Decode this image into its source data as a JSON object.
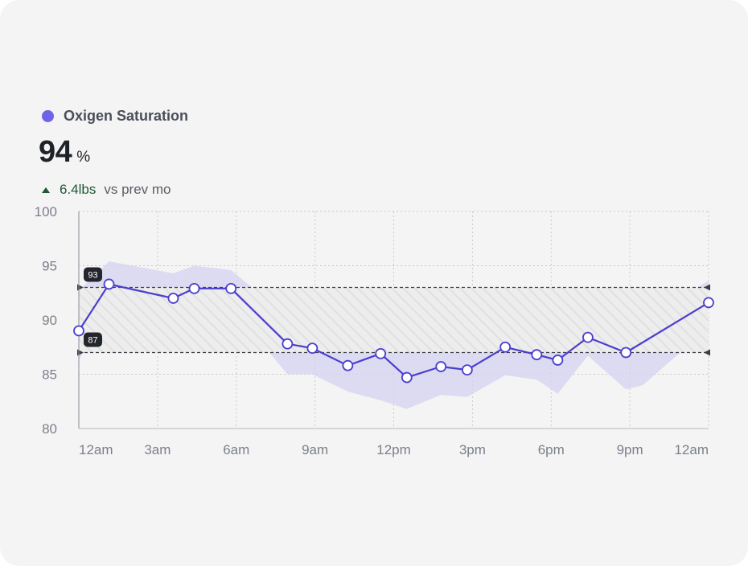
{
  "metric": {
    "title": "Oxigen Saturation",
    "value": "94",
    "unit": "%",
    "delta_value": "6.4lbs",
    "delta_label": "vs prev mo"
  },
  "colors": {
    "series": "#4b3fcf",
    "marker": "#6e65e6",
    "band": "#d6d3f0",
    "delta_up": "#1f5a34"
  },
  "chart_data": {
    "type": "line",
    "title": "",
    "xlabel": "",
    "ylabel": "",
    "ylim": [
      80,
      100
    ],
    "yticks": [
      "100",
      "95",
      "90",
      "85",
      "80"
    ],
    "xticks": [
      "12am",
      "3am",
      "6am",
      "9am",
      "12pm",
      "3pm",
      "6pm",
      "9pm",
      "12am"
    ],
    "x_range_hours": [
      0,
      24
    ],
    "grid": true,
    "series": [
      {
        "values": [
          {
            "x": 0.0,
            "y": 89.0
          },
          {
            "x": 1.15,
            "y": 93.3
          },
          {
            "x": 3.6,
            "y": 92.0
          },
          {
            "x": 4.4,
            "y": 92.9
          },
          {
            "x": 5.8,
            "y": 92.9
          },
          {
            "x": 7.95,
            "y": 87.8
          },
          {
            "x": 8.9,
            "y": 87.4
          },
          {
            "x": 10.25,
            "y": 85.8
          },
          {
            "x": 11.5,
            "y": 86.9
          },
          {
            "x": 12.5,
            "y": 84.7
          },
          {
            "x": 13.8,
            "y": 85.7
          },
          {
            "x": 14.8,
            "y": 85.4
          },
          {
            "x": 16.25,
            "y": 87.5
          },
          {
            "x": 17.45,
            "y": 86.8
          },
          {
            "x": 18.25,
            "y": 86.3
          },
          {
            "x": 19.4,
            "y": 88.4
          },
          {
            "x": 20.85,
            "y": 87.0
          },
          {
            "x": 24.0,
            "y": 91.6
          }
        ]
      }
    ],
    "range_band": {
      "upper": [
        {
          "x": 0.0,
          "y": 92.7
        },
        {
          "x": 1.15,
          "y": 95.4
        },
        {
          "x": 3.6,
          "y": 94.3
        },
        {
          "x": 4.4,
          "y": 95.0
        },
        {
          "x": 5.8,
          "y": 94.6
        },
        {
          "x": 7.95,
          "y": 90.3
        },
        {
          "x": 8.9,
          "y": 90.0
        },
        {
          "x": 10.25,
          "y": 88.6
        },
        {
          "x": 11.5,
          "y": 89.1
        },
        {
          "x": 12.5,
          "y": 87.5
        },
        {
          "x": 13.8,
          "y": 88.6
        },
        {
          "x": 14.8,
          "y": 88.3
        },
        {
          "x": 16.25,
          "y": 90.4
        },
        {
          "x": 17.45,
          "y": 90.3
        },
        {
          "x": 18.25,
          "y": 89.8
        },
        {
          "x": 19.4,
          "y": 90.8
        },
        {
          "x": 20.85,
          "y": 90.9
        },
        {
          "x": 21.5,
          "y": 92.3
        },
        {
          "x": 23.2,
          "y": 92.5
        },
        {
          "x": 24.0,
          "y": 93.6
        }
      ],
      "lower": [
        {
          "x": 0.0,
          "y": 86.3
        },
        {
          "x": 1.15,
          "y": 91.2
        },
        {
          "x": 3.6,
          "y": 89.9
        },
        {
          "x": 4.4,
          "y": 91.2
        },
        {
          "x": 5.8,
          "y": 91.2
        },
        {
          "x": 7.95,
          "y": 85.0
        },
        {
          "x": 8.9,
          "y": 85.0
        },
        {
          "x": 10.25,
          "y": 83.4
        },
        {
          "x": 11.5,
          "y": 82.6
        },
        {
          "x": 12.5,
          "y": 81.8
        },
        {
          "x": 13.8,
          "y": 83.1
        },
        {
          "x": 14.8,
          "y": 82.9
        },
        {
          "x": 16.25,
          "y": 84.9
        },
        {
          "x": 17.45,
          "y": 84.5
        },
        {
          "x": 18.25,
          "y": 83.2
        },
        {
          "x": 19.4,
          "y": 86.7
        },
        {
          "x": 20.85,
          "y": 83.6
        },
        {
          "x": 21.5,
          "y": 84.0
        },
        {
          "x": 23.2,
          "y": 87.6
        },
        {
          "x": 24.0,
          "y": 89.3
        }
      ]
    },
    "reference_range": {
      "upper": 93,
      "lower": 87,
      "upper_label": "93",
      "lower_label": "87"
    }
  }
}
